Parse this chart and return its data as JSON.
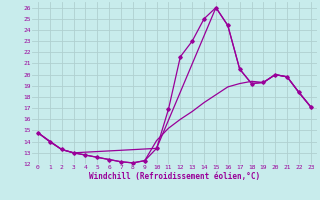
{
  "xlabel": "Windchill (Refroidissement éolien,°C)",
  "background_color": "#c8ecec",
  "grid_color": "#b0d0d0",
  "line_color": "#990099",
  "xlim": [
    -0.5,
    23.5
  ],
  "ylim": [
    12,
    26.5
  ],
  "xticks": [
    0,
    1,
    2,
    3,
    4,
    5,
    6,
    7,
    8,
    9,
    10,
    11,
    12,
    13,
    14,
    15,
    16,
    17,
    18,
    19,
    20,
    21,
    22,
    23
  ],
  "yticks": [
    12,
    13,
    14,
    15,
    16,
    17,
    18,
    19,
    20,
    21,
    22,
    23,
    24,
    25,
    26
  ],
  "series1_x": [
    0,
    1,
    2,
    3,
    4,
    5,
    6,
    7,
    8,
    9,
    10,
    11,
    12,
    13,
    14,
    15,
    16,
    17,
    18,
    19,
    20,
    21,
    22,
    23
  ],
  "series1_y": [
    14.8,
    14.0,
    13.3,
    13.0,
    12.8,
    12.6,
    12.4,
    12.2,
    12.1,
    12.3,
    13.4,
    16.9,
    21.6,
    23.0,
    25.0,
    26.0,
    24.4,
    20.5,
    19.2,
    19.3,
    20.0,
    19.8,
    18.4,
    17.1
  ],
  "series2_x": [
    0,
    1,
    2,
    3,
    4,
    5,
    6,
    7,
    8,
    9,
    10,
    11,
    12,
    13,
    14,
    15,
    16,
    17,
    18,
    19,
    20,
    21,
    22,
    23
  ],
  "series2_y": [
    14.8,
    14.0,
    13.3,
    13.0,
    12.8,
    12.6,
    12.4,
    12.2,
    12.1,
    12.3,
    14.1,
    15.2,
    16.0,
    16.7,
    17.5,
    18.2,
    18.9,
    19.2,
    19.4,
    19.3,
    20.0,
    19.8,
    18.4,
    17.1
  ],
  "series3_x": [
    0,
    2,
    3,
    10,
    15,
    16,
    17,
    18,
    19,
    20,
    21,
    22,
    23
  ],
  "series3_y": [
    14.8,
    13.3,
    13.0,
    13.4,
    26.0,
    24.4,
    20.5,
    19.2,
    19.3,
    20.0,
    19.8,
    18.4,
    17.1
  ]
}
